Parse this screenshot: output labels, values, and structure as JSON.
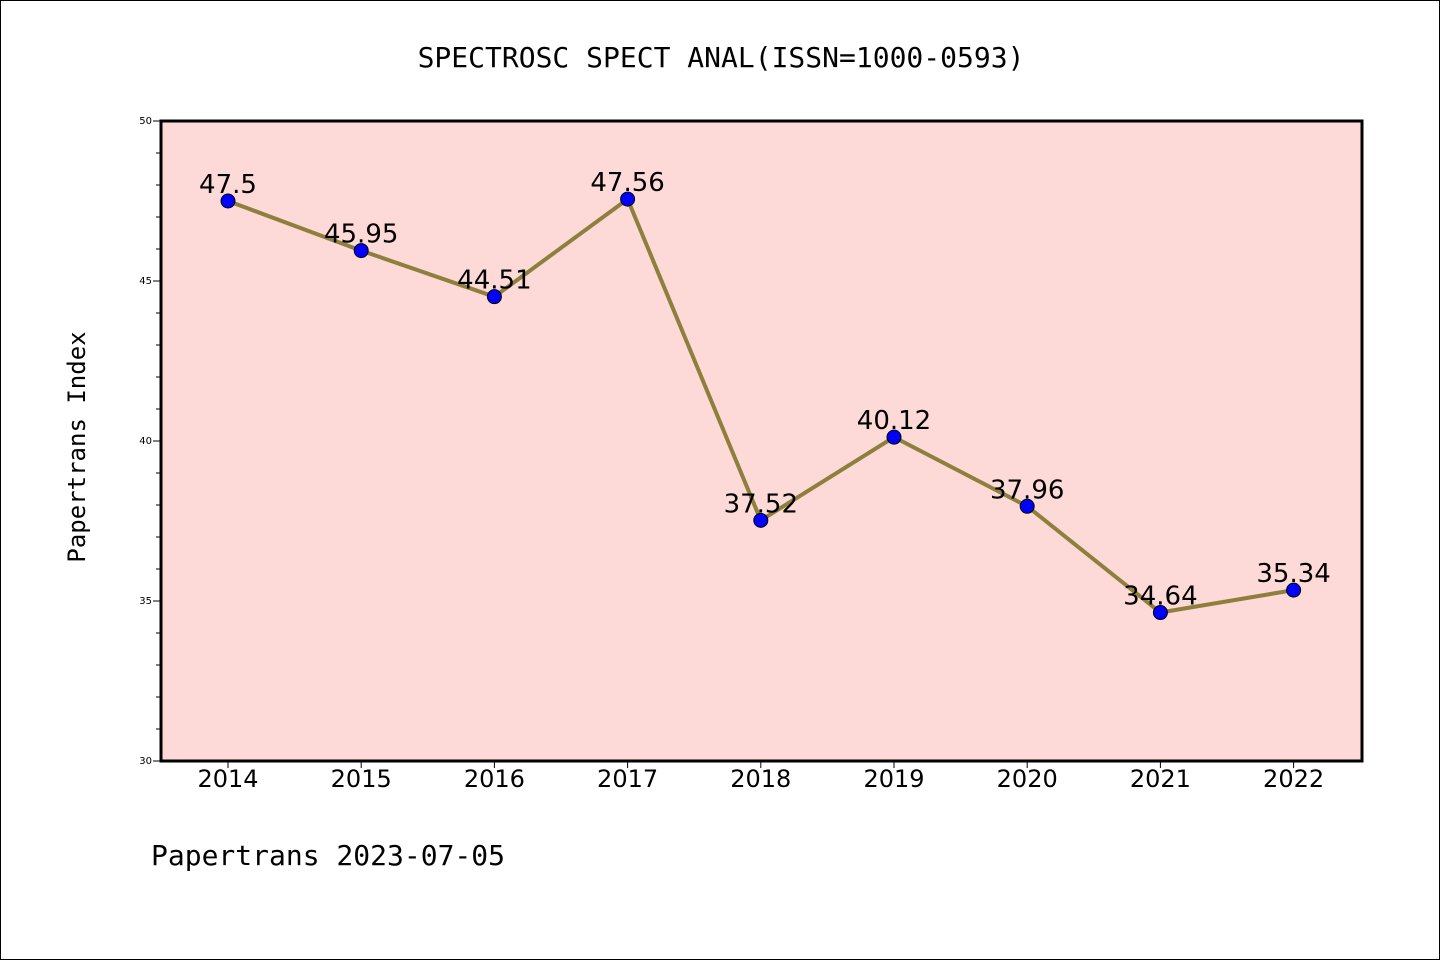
{
  "chart_data": {
    "type": "line",
    "title": "SPECTROSC SPECT ANAL(ISSN=1000-0593)",
    "ylabel": "Papertrans Index",
    "xlabel": "",
    "categories": [
      "2014",
      "2015",
      "2016",
      "2017",
      "2018",
      "2019",
      "2020",
      "2021",
      "2022"
    ],
    "series": [
      {
        "values": [
          47.5,
          45.95,
          44.51,
          47.56,
          37.52,
          40.12,
          37.96,
          34.64,
          35.34
        ],
        "data_labels": [
          "47.5",
          "45.95",
          "44.51",
          "47.56",
          "37.52",
          "40.12",
          "37.96",
          "34.64",
          "35.34"
        ]
      }
    ],
    "ylim": [
      30,
      50
    ],
    "yticks": [
      30,
      35,
      40,
      45,
      50
    ],
    "grid": false,
    "colors": {
      "plot_background": "#fddad8",
      "line": "#8e7f3c",
      "marker": "#0000ff"
    }
  },
  "footer": {
    "text": "Papertrans 2023-07-05"
  }
}
